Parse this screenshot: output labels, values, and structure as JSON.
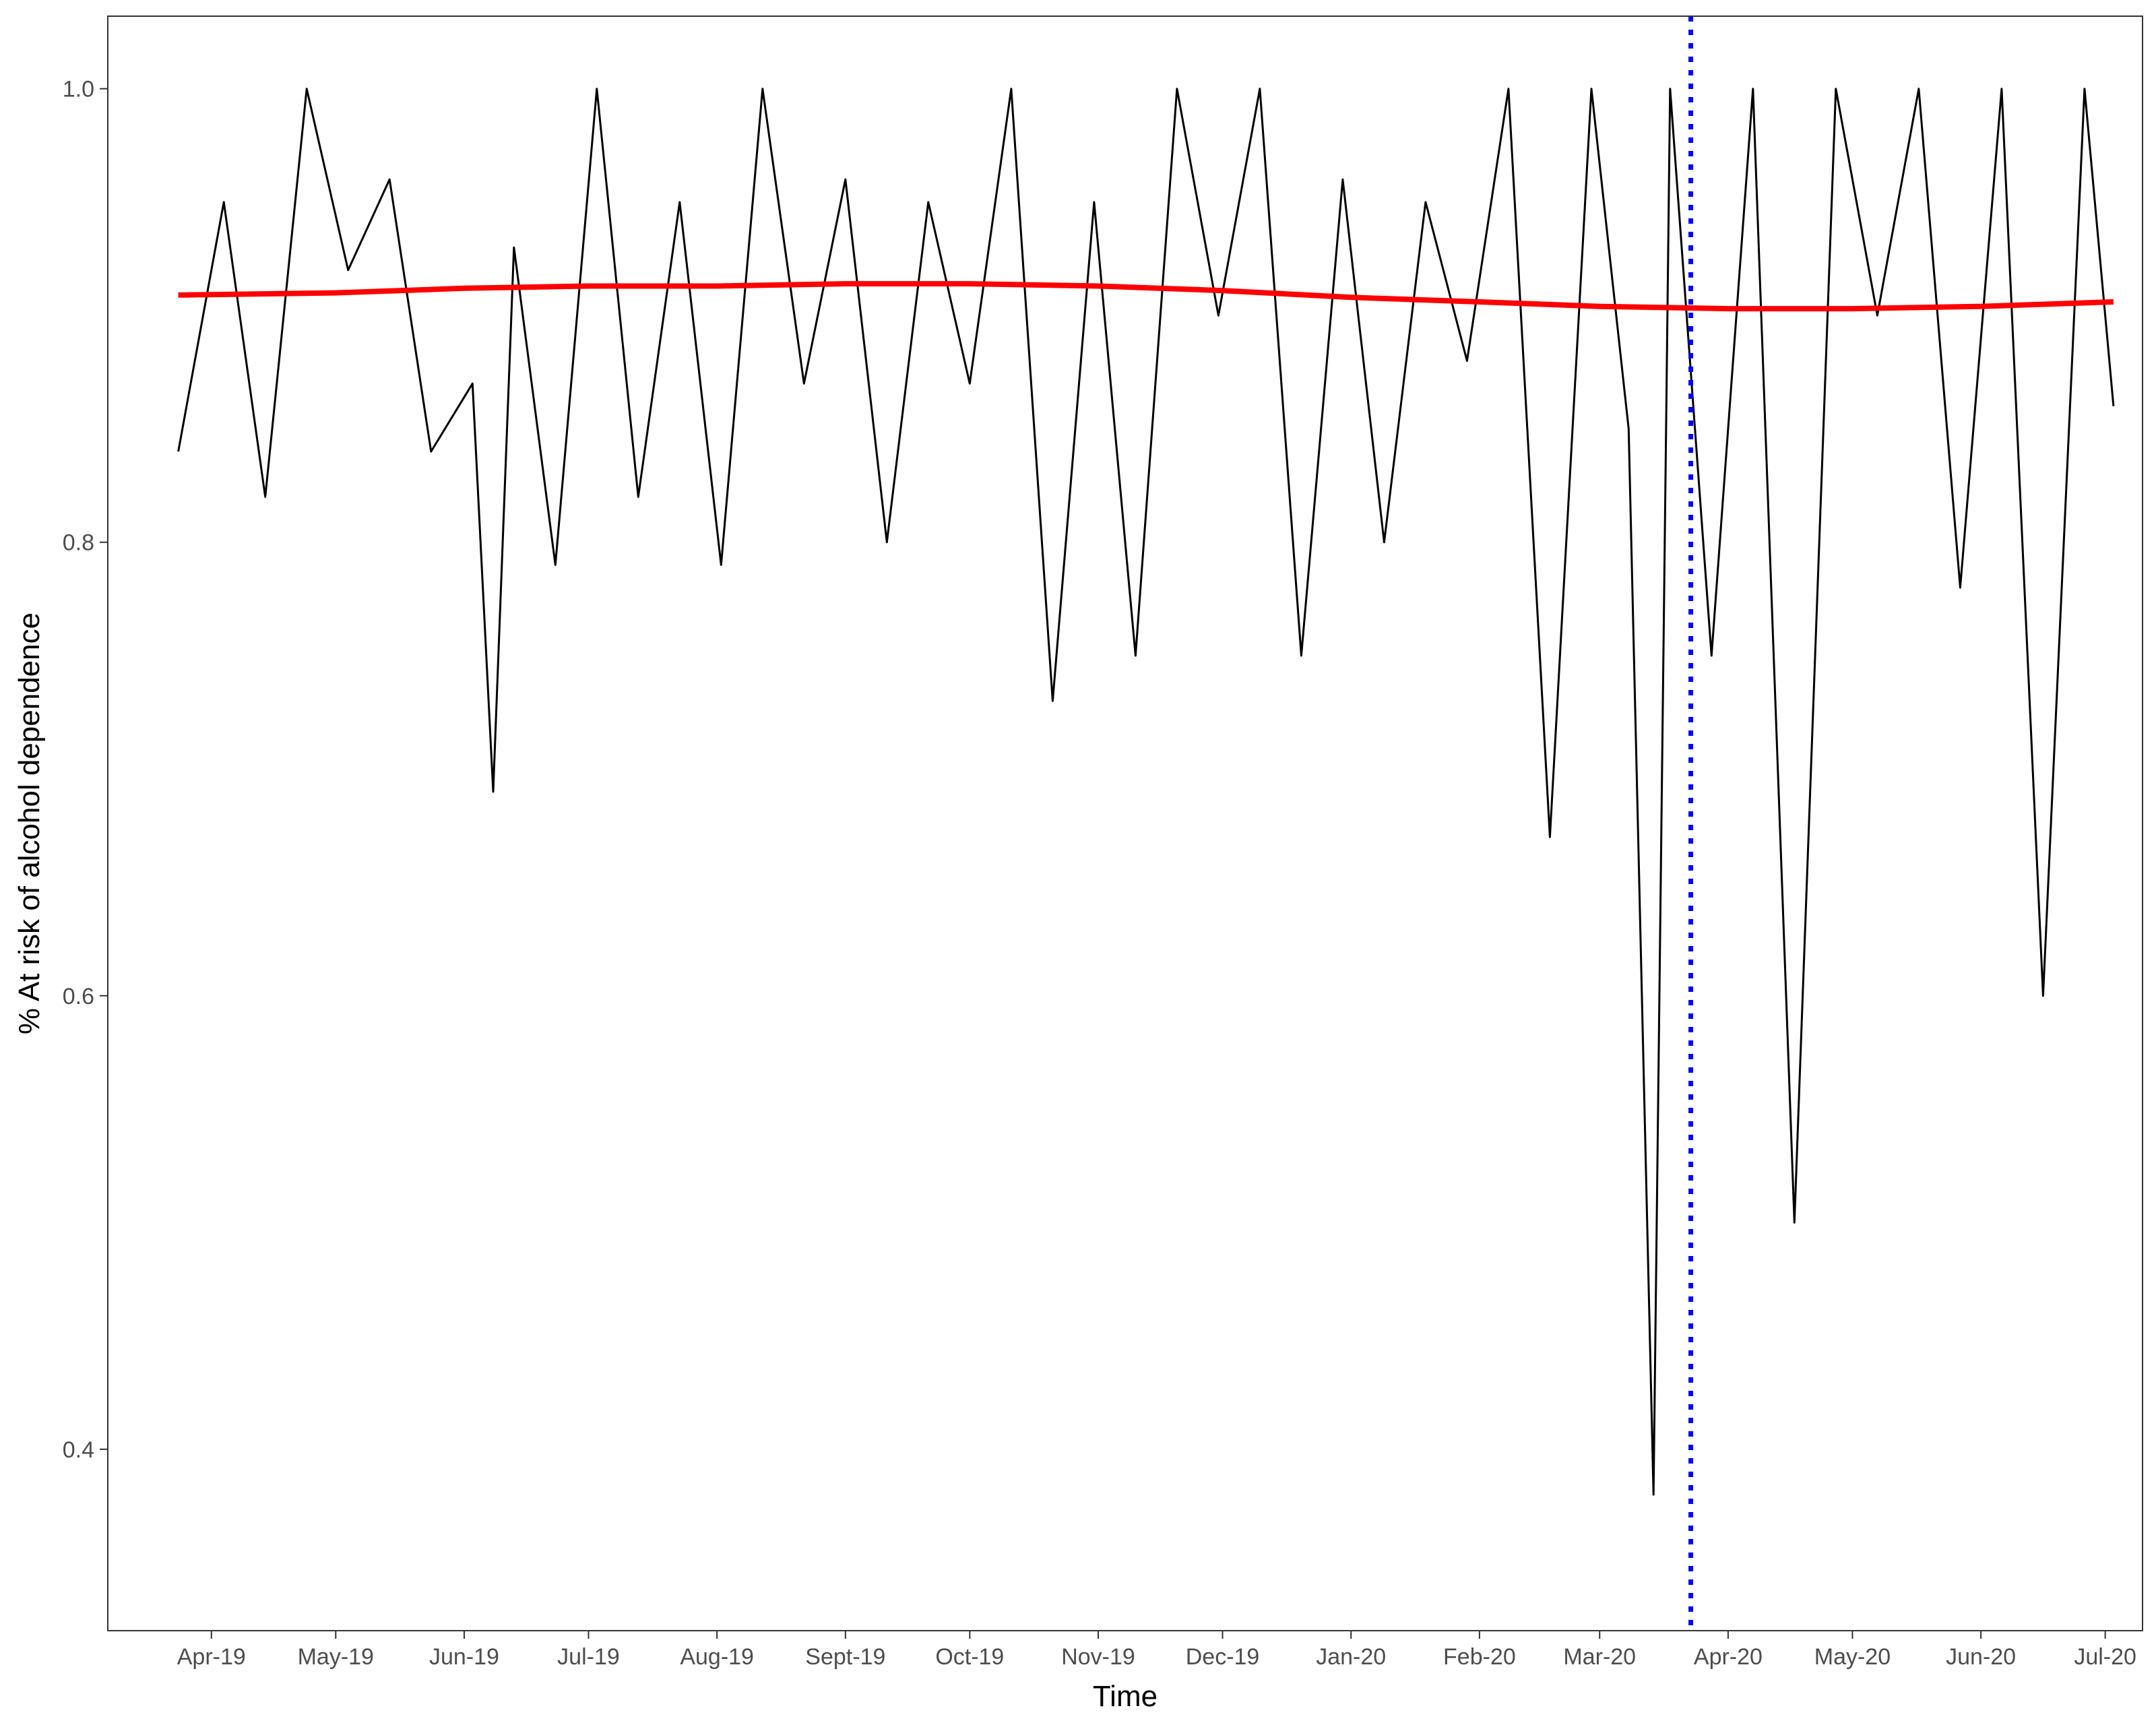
{
  "chart_data": {
    "type": "line",
    "title": "",
    "xlabel": "Time",
    "ylabel": "% At risk of alcohol dependence",
    "x_tick_labels": [
      "Apr-19",
      "May-19",
      "Jun-19",
      "Jul-19",
      "Aug-19",
      "Sept-19",
      "Oct-19",
      "Nov-19",
      "Dec-19",
      "Jan-20",
      "Feb-20",
      "Mar-20",
      "Apr-20",
      "May-20",
      "Jun-20",
      "Jul-20"
    ],
    "x_tick_dates": [
      "2019-04-01",
      "2019-05-01",
      "2019-06-01",
      "2019-07-01",
      "2019-08-01",
      "2019-09-01",
      "2019-10-01",
      "2019-11-01",
      "2019-12-01",
      "2020-01-01",
      "2020-02-01",
      "2020-03-01",
      "2020-04-01",
      "2020-05-01",
      "2020-06-01",
      "2020-07-01"
    ],
    "y_ticks": [
      0.4,
      0.6,
      0.8,
      1.0
    ],
    "y_tick_labels": [
      "0.4",
      "0.6",
      "0.8",
      "1.0"
    ],
    "xlim": [
      "2019-03-07",
      "2020-07-10"
    ],
    "ylim": [
      0.32,
      1.032
    ],
    "grid": false,
    "series": [
      {
        "role": "daily",
        "color": "#000000",
        "x": [
          "2019-03-24",
          "2019-04-04",
          "2019-04-14",
          "2019-04-24",
          "2019-05-04",
          "2019-05-14",
          "2019-05-24",
          "2019-06-03",
          "2019-06-08",
          "2019-06-13",
          "2019-06-23",
          "2019-07-03",
          "2019-07-13",
          "2019-07-23",
          "2019-08-02",
          "2019-08-12",
          "2019-08-22",
          "2019-09-01",
          "2019-09-11",
          "2019-09-21",
          "2019-10-01",
          "2019-10-11",
          "2019-10-21",
          "2019-10-31",
          "2019-11-10",
          "2019-11-20",
          "2019-11-30",
          "2019-12-10",
          "2019-12-20",
          "2019-12-30",
          "2020-01-09",
          "2020-01-19",
          "2020-01-29",
          "2020-02-08",
          "2020-02-18",
          "2020-02-28",
          "2020-03-08",
          "2020-03-14",
          "2020-03-18",
          "2020-03-28",
          "2020-04-07",
          "2020-04-17",
          "2020-04-27",
          "2020-05-07",
          "2020-05-17",
          "2020-05-27",
          "2020-06-06",
          "2020-06-16",
          "2020-06-26",
          "2020-07-03"
        ],
        "values": [
          0.84,
          0.95,
          0.82,
          1.0,
          0.92,
          0.96,
          0.84,
          0.87,
          0.69,
          0.93,
          0.79,
          1.0,
          0.82,
          0.95,
          0.79,
          1.0,
          0.87,
          0.96,
          0.8,
          0.95,
          0.87,
          1.0,
          0.73,
          0.95,
          0.75,
          1.0,
          0.9,
          1.0,
          0.75,
          0.96,
          0.8,
          0.95,
          0.88,
          1.0,
          0.67,
          1.0,
          0.85,
          0.38,
          1.0,
          0.75,
          1.0,
          0.5,
          1.0,
          0.9,
          1.0,
          0.78,
          1.0,
          0.6,
          1.0,
          0.86
        ]
      },
      {
        "role": "smoothed trend",
        "color": "#ff0000",
        "x": [
          "2019-03-24",
          "2019-05-01",
          "2019-06-01",
          "2019-07-01",
          "2019-08-01",
          "2019-09-01",
          "2019-10-01",
          "2019-11-01",
          "2019-12-01",
          "2020-01-01",
          "2020-02-01",
          "2020-03-01",
          "2020-04-01",
          "2020-05-01",
          "2020-06-01",
          "2020-07-03"
        ],
        "values": [
          0.909,
          0.91,
          0.912,
          0.913,
          0.913,
          0.914,
          0.914,
          0.913,
          0.911,
          0.908,
          0.906,
          0.904,
          0.903,
          0.903,
          0.904,
          0.906
        ]
      }
    ],
    "reference_line": {
      "x": "2020-03-23",
      "color": "#0000ff",
      "style": "dotted"
    }
  }
}
